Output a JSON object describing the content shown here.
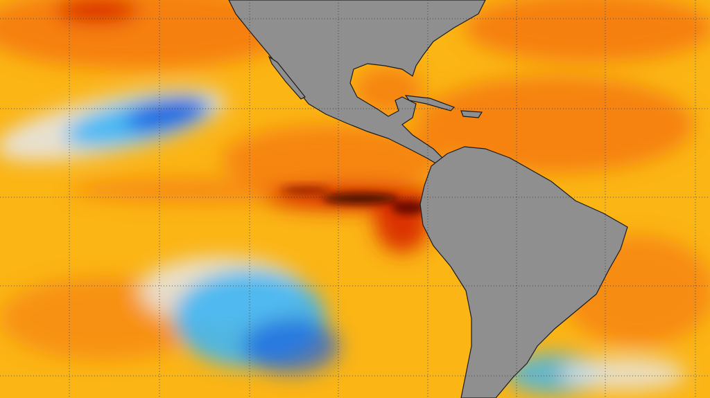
{
  "map": {
    "colors": {
      "ocean_base": "#fbb515",
      "warm": "#f57a10",
      "hot": "#d92a05",
      "extreme": "#4a0804",
      "neutral": "#e6e6e6",
      "cool": "#3fb6f5",
      "cold": "#1a5fe0",
      "land": "#8f8f8f",
      "coastline": "#1a1a1a",
      "grid": "#333333"
    },
    "grid": true
  }
}
